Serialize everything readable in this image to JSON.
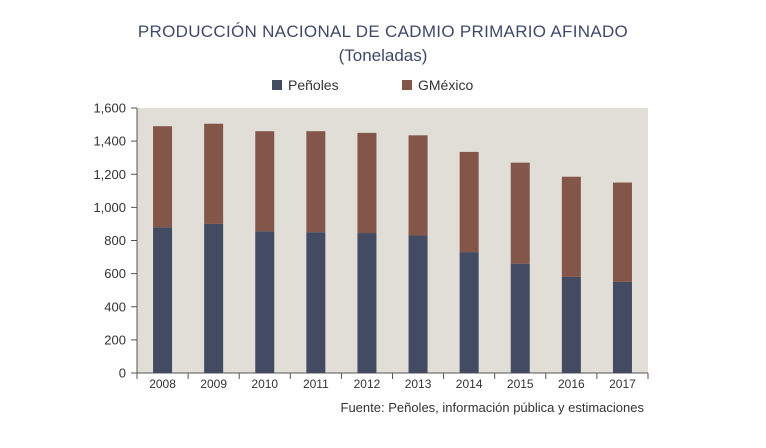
{
  "chart_data": {
    "type": "bar",
    "stacked": true,
    "title": "PRODUCCIÓN NACIONAL DE CADMIO PRIMARIO AFINADO",
    "subtitle": "(Toneladas)",
    "categories": [
      "2008",
      "2009",
      "2010",
      "2011",
      "2012",
      "2013",
      "2014",
      "2015",
      "2016",
      "2017"
    ],
    "series": [
      {
        "name": "Peñoles",
        "color": "#434b63",
        "values": [
          880,
          900,
          855,
          850,
          845,
          830,
          730,
          660,
          580,
          550
        ]
      },
      {
        "name": "GMéxico",
        "color": "#84564a",
        "values": [
          610,
          605,
          605,
          610,
          605,
          605,
          605,
          610,
          605,
          600
        ]
      }
    ],
    "ylim": [
      0,
      1600
    ],
    "yticks": [
      "0",
      "200",
      "400",
      "600",
      "800",
      "1,000",
      "1,200",
      "1,400",
      "1,600"
    ],
    "plot_background": "#e1ded7",
    "legend_position": "top-center",
    "source": "Fuente: Peñoles, información pública y estimaciones"
  }
}
